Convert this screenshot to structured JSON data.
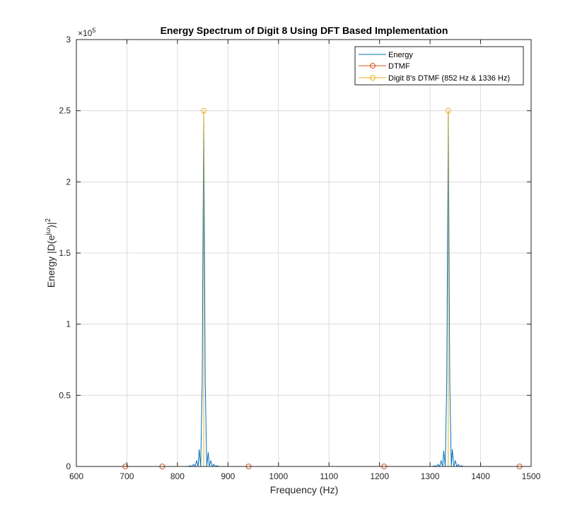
{
  "chart_data": {
    "type": "line",
    "title": "Energy Spectrum of Digit 8 Using DFT Based Implementation",
    "xlabel": "Frequency (Hz)",
    "ylabel_prefix": "Energy |D(e",
    "ylabel_sup": "jω",
    "ylabel_close": ")|",
    "ylabel_sup2": "2",
    "xlim": [
      600,
      1500
    ],
    "ylim": [
      0,
      300000
    ],
    "x_ticks": [
      600,
      700,
      800,
      900,
      1000,
      1100,
      1200,
      1300,
      1400,
      1500
    ],
    "x_tick_labels": [
      "600",
      "700",
      "800",
      "900",
      "1000",
      "1100",
      "1200",
      "1300",
      "1400",
      "1500"
    ],
    "y_ticks": [
      0,
      50000,
      100000,
      150000,
      200000,
      250000,
      300000
    ],
    "y_tick_labels": [
      "0",
      "0.5",
      "1",
      "1.5",
      "2",
      "2.5",
      "3"
    ],
    "y_exponent_base": "×10",
    "y_exponent_power": "5",
    "grid": true,
    "legend_position": "top-right",
    "series": [
      {
        "name": "Energy",
        "color": "#0072BD",
        "style": "line",
        "peaks": [
          {
            "center": 852,
            "points": [
              [
                820,
                0
              ],
              [
                826,
                500
              ],
              [
                829,
                0
              ],
              [
                832,
                1500
              ],
              [
                835,
                0
              ],
              [
                838,
                4000
              ],
              [
                841,
                0
              ],
              [
                843,
                12000
              ],
              [
                846,
                0
              ],
              [
                849,
                60000
              ],
              [
                852,
                250000
              ],
              [
                855,
                60000
              ],
              [
                858,
                0
              ],
              [
                861,
                10000
              ],
              [
                863,
                0
              ],
              [
                866,
                4000
              ],
              [
                869,
                0
              ],
              [
                872,
                1500
              ],
              [
                875,
                0
              ],
              [
                878,
                500
              ],
              [
                882,
                0
              ]
            ]
          },
          {
            "center": 1336,
            "points": [
              [
                1304,
                0
              ],
              [
                1310,
                500
              ],
              [
                1313,
                0
              ],
              [
                1316,
                1500
              ],
              [
                1319,
                0
              ],
              [
                1322,
                4000
              ],
              [
                1325,
                0
              ],
              [
                1327,
                11000
              ],
              [
                1330,
                0
              ],
              [
                1333,
                60000
              ],
              [
                1336,
                250000
              ],
              [
                1339,
                60000
              ],
              [
                1342,
                0
              ],
              [
                1344,
                12000
              ],
              [
                1347,
                0
              ],
              [
                1350,
                4000
              ],
              [
                1353,
                0
              ],
              [
                1356,
                1500
              ],
              [
                1359,
                0
              ],
              [
                1362,
                500
              ],
              [
                1366,
                0
              ]
            ]
          }
        ]
      },
      {
        "name": "DTMF",
        "color": "#D95319",
        "style": "stem",
        "x": [
          697,
          770,
          941,
          1209,
          1477
        ],
        "y": [
          0,
          0,
          0,
          0,
          0
        ]
      },
      {
        "name": "Digit 8's DTMF (852 Hz & 1336 Hz)",
        "color": "#EDB120",
        "style": "stem",
        "x": [
          852,
          1336
        ],
        "y": [
          250000,
          250000
        ]
      }
    ]
  }
}
